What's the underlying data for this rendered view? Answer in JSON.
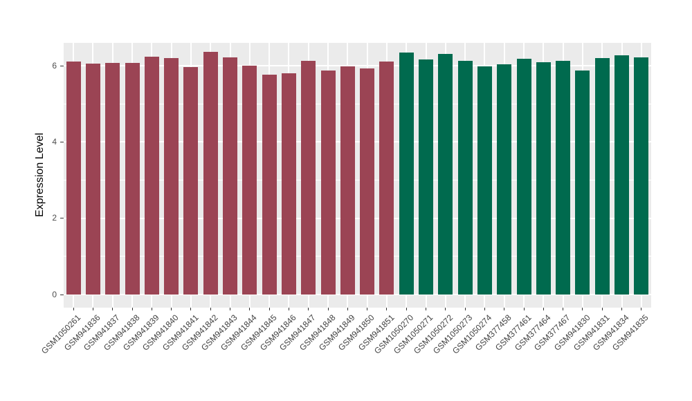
{
  "chart_data": {
    "type": "bar",
    "title": "",
    "xlabel": "",
    "ylabel": "Expression Level",
    "yticks": [
      0,
      2,
      4,
      6
    ],
    "minor_gridlines": [
      1,
      3,
      5
    ],
    "ylim": [
      0,
      6.6
    ],
    "legend": "none",
    "panel_background": "#EBEBEB",
    "gridline_color": "#FFFFFF",
    "group_colors": {
      "group-1": "#9B4454",
      "group-2": "#006A4E"
    },
    "bars": [
      {
        "label": "GSM1050261",
        "value": 6.11,
        "group": "group-1"
      },
      {
        "label": "GSM941836",
        "value": 6.05,
        "group": "group-1"
      },
      {
        "label": "GSM941837",
        "value": 6.08,
        "group": "group-1"
      },
      {
        "label": "GSM941838",
        "value": 6.08,
        "group": "group-1"
      },
      {
        "label": "GSM941839",
        "value": 6.23,
        "group": "group-1"
      },
      {
        "label": "GSM941840",
        "value": 6.2,
        "group": "group-1"
      },
      {
        "label": "GSM941841",
        "value": 5.96,
        "group": "group-1"
      },
      {
        "label": "GSM941842",
        "value": 6.36,
        "group": "group-1"
      },
      {
        "label": "GSM941843",
        "value": 6.22,
        "group": "group-1"
      },
      {
        "label": "GSM941844",
        "value": 6.01,
        "group": "group-1"
      },
      {
        "label": "GSM941845",
        "value": 5.77,
        "group": "group-1"
      },
      {
        "label": "GSM941846",
        "value": 5.81,
        "group": "group-1"
      },
      {
        "label": "GSM941847",
        "value": 6.13,
        "group": "group-1"
      },
      {
        "label": "GSM941848",
        "value": 5.87,
        "group": "group-1"
      },
      {
        "label": "GSM941849",
        "value": 5.99,
        "group": "group-1"
      },
      {
        "label": "GSM941850",
        "value": 5.93,
        "group": "group-1"
      },
      {
        "label": "GSM941851",
        "value": 6.11,
        "group": "group-1"
      },
      {
        "label": "GSM1050270",
        "value": 6.35,
        "group": "group-2"
      },
      {
        "label": "GSM1050271",
        "value": 6.17,
        "group": "group-2"
      },
      {
        "label": "GSM1050272",
        "value": 6.31,
        "group": "group-2"
      },
      {
        "label": "GSM1050273",
        "value": 6.13,
        "group": "group-2"
      },
      {
        "label": "GSM1050274",
        "value": 5.98,
        "group": "group-2"
      },
      {
        "label": "GSM377458",
        "value": 6.04,
        "group": "group-2"
      },
      {
        "label": "GSM377461",
        "value": 6.18,
        "group": "group-2"
      },
      {
        "label": "GSM377464",
        "value": 6.1,
        "group": "group-2"
      },
      {
        "label": "GSM377467",
        "value": 6.12,
        "group": "group-2"
      },
      {
        "label": "GSM941830",
        "value": 5.87,
        "group": "group-2"
      },
      {
        "label": "GSM941831",
        "value": 6.2,
        "group": "group-2"
      },
      {
        "label": "GSM941834",
        "value": 6.27,
        "group": "group-2"
      },
      {
        "label": "GSM941835",
        "value": 6.22,
        "group": "group-2"
      }
    ]
  }
}
